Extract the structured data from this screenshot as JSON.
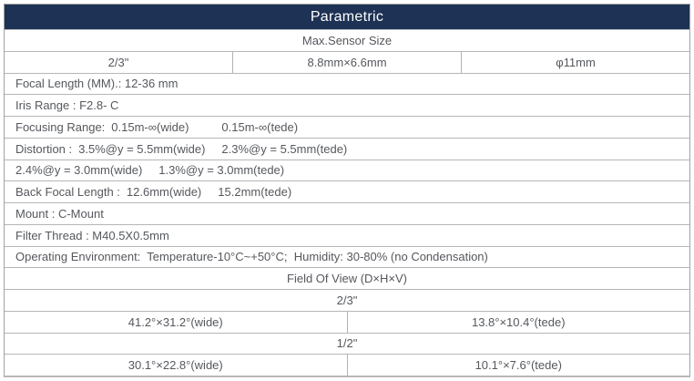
{
  "header": {
    "title": "Parametric"
  },
  "colors": {
    "header_bg": "#1d3254",
    "header_text": "#ffffff",
    "body_text": "#55585d",
    "border": "#b6b6b6"
  },
  "rows": {
    "max_sensor_size": "Max.Sensor Size",
    "sensor": {
      "inch": "2/3\"",
      "mm": "8.8mm×6.6mm",
      "dia": "φ11mm"
    },
    "focal_length": "Focal Length (MM).: 12-36 mm",
    "iris_range": "Iris Range : F2.8- C",
    "focusing": {
      "label": "Focusing Range:",
      "wide": "0.15m-∞(wide)",
      "tele": "0.15m-∞(tede)"
    },
    "distortion_y55": {
      "label": "Distortion :",
      "wide": "3.5%@y = 5.5mm(wide)",
      "tele": "2.3%@y = 5.5mm(tede)"
    },
    "distortion_y30": {
      "wide": "2.4%@y = 3.0mm(wide)",
      "tele": "1.3%@y = 3.0mm(tede)"
    },
    "back_focal": {
      "label": "Back Focal Length :",
      "wide": "12.6mm(wide)",
      "tele": "15.2mm(tede)"
    },
    "mount": "Mount : C-Mount",
    "filter_thread": "Filter Thread : M40.5X0.5mm",
    "operating_env": "Operating Environment:  Temperature-10°C~+50°C;  Humidity: 30-80% (no Condensation)",
    "fov_header": "Field Of View (D×H×V)",
    "fov_2_3": {
      "size": "2/3\"",
      "wide": "41.2°×31.2°(wide)",
      "tele": "13.8°×10.4°(tede)"
    },
    "fov_1_2": {
      "size": "1/2\"",
      "wide": "30.1°×22.8°(wide)",
      "tele": "10.1°×7.6°(tede)"
    }
  }
}
